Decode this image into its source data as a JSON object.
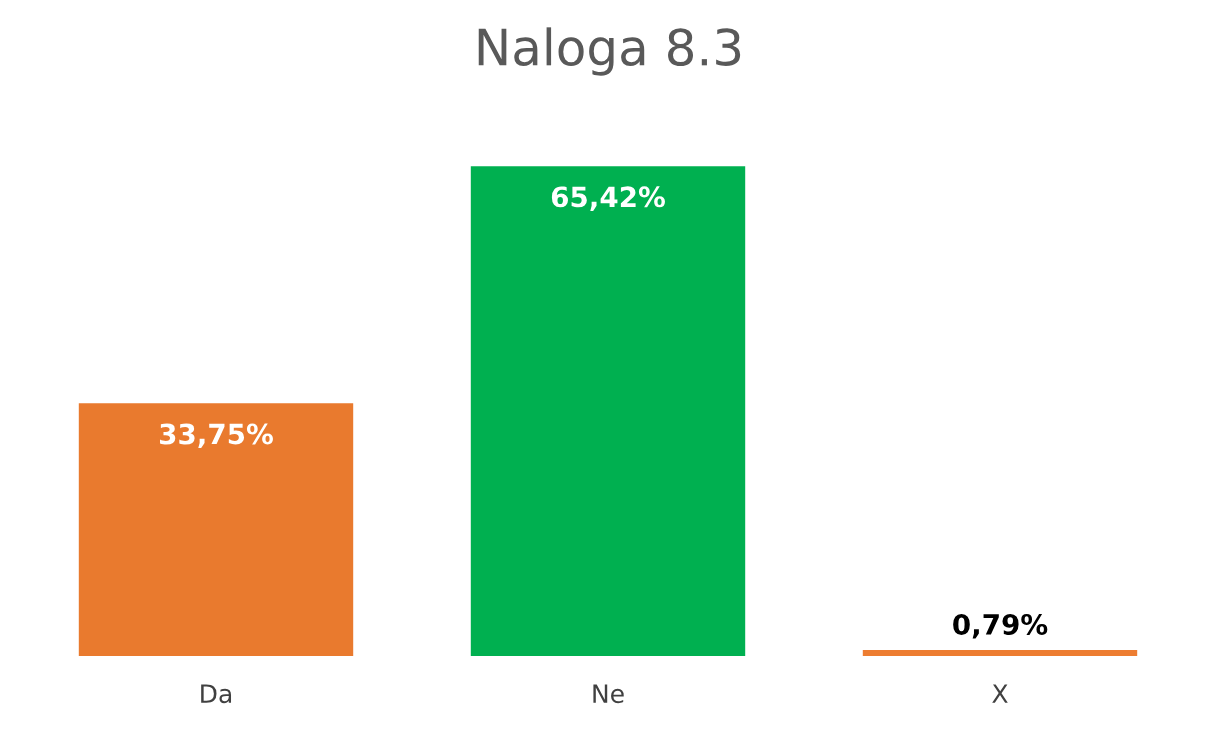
{
  "chart_data": {
    "type": "bar",
    "title": "Naloga 8.3",
    "categories": [
      "Da",
      "Ne",
      "X"
    ],
    "values": [
      33.75,
      65.42,
      0.79
    ],
    "colors": [
      "#e97a2e",
      "#00b050",
      "#ed7d31"
    ],
    "value_labels": [
      "33,75%",
      "65,42%",
      "0,79%"
    ],
    "grid": false,
    "legend": false
  }
}
